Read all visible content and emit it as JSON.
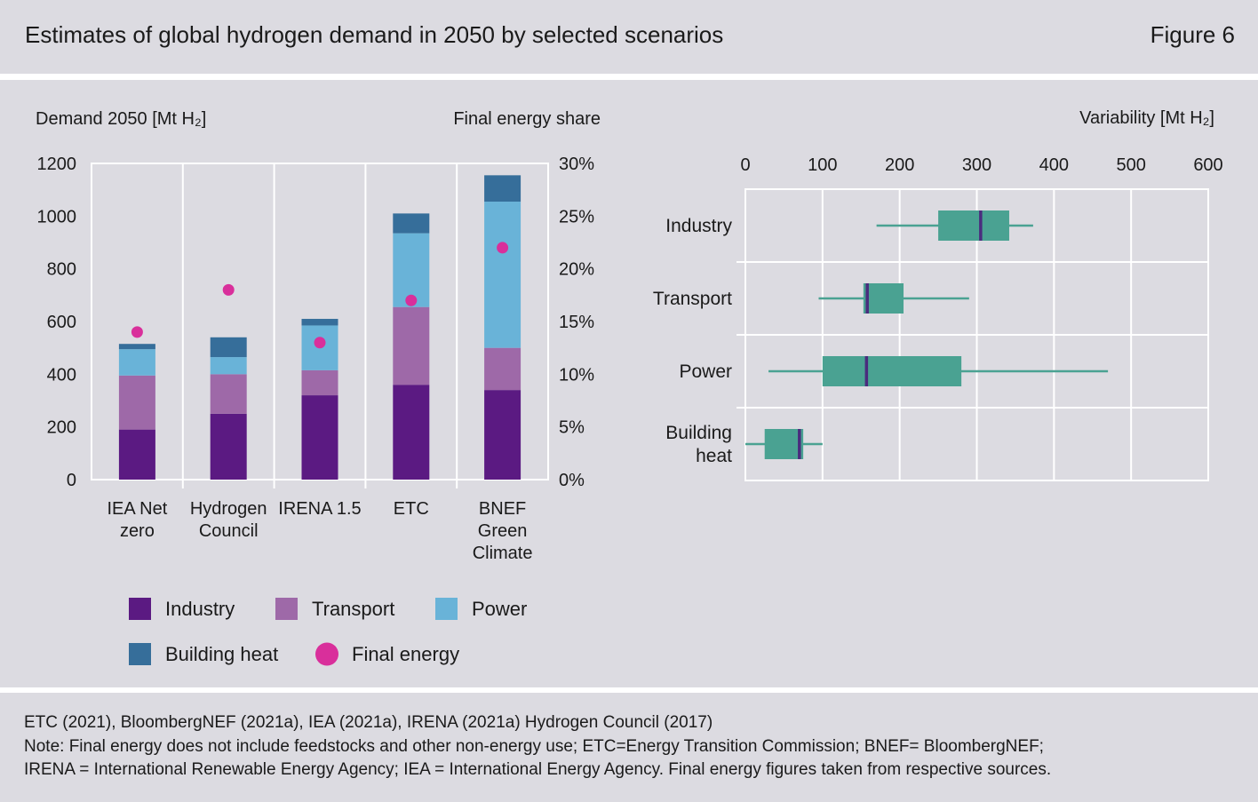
{
  "header": {
    "title": "Estimates of global hydrogen demand in 2050 by selected scenarios",
    "figure_label": "Figure 6"
  },
  "colors": {
    "industry": "#5b1a82",
    "transport": "#9e69a8",
    "power": "#69b3d8",
    "building_heat": "#366e9a",
    "final_energy": "#d92f9b",
    "box": "#4aa292",
    "median": "#4a2c7e",
    "background": "#dcdbe1"
  },
  "chart_data": [
    {
      "type": "bar",
      "stacked": true,
      "ylabel": "Demand 2050 [Mt H₂]",
      "y2label": "Final energy share",
      "ylim": [
        0,
        1200
      ],
      "y2lim": [
        0,
        30
      ],
      "yticks": [
        "0",
        "200",
        "400",
        "600",
        "800",
        "1000",
        "1200"
      ],
      "y2ticks": [
        "0%",
        "5%",
        "10%",
        "15%",
        "20%",
        "25%",
        "30%"
      ],
      "categories": [
        [
          "IEA Net",
          "zero"
        ],
        [
          "Hydrogen",
          "Council"
        ],
        [
          "IRENA 1.5"
        ],
        [
          "ETC"
        ],
        [
          "BNEF",
          "Green",
          "Climate"
        ]
      ],
      "series": [
        {
          "name": "Industry",
          "key": "industry",
          "values": [
            190,
            250,
            320,
            360,
            340
          ]
        },
        {
          "name": "Transport",
          "key": "transport",
          "values": [
            205,
            150,
            95,
            295,
            160
          ]
        },
        {
          "name": "Power",
          "key": "power",
          "values": [
            100,
            65,
            170,
            280,
            555
          ]
        },
        {
          "name": "Building heat",
          "key": "building_heat",
          "values": [
            20,
            75,
            25,
            75,
            100
          ]
        }
      ],
      "final_energy": {
        "name": "Final energy",
        "values": [
          14,
          18,
          13,
          17,
          22
        ],
        "unit": "%"
      },
      "grid": true,
      "legend_position": "bottom"
    },
    {
      "type": "boxplot",
      "orientation": "horizontal",
      "xlabel": "Variability [Mt H₂]",
      "xlim": [
        0,
        600
      ],
      "xticks": [
        "0",
        "100",
        "200",
        "300",
        "400",
        "500",
        "600"
      ],
      "categories": [
        [
          "Industry"
        ],
        [
          "Transport"
        ],
        [
          "Power"
        ],
        [
          "Building",
          "heat"
        ]
      ],
      "boxes": [
        {
          "min": 170,
          "q1": 250,
          "median": 305,
          "q3": 342,
          "max": 373
        },
        {
          "min": 95,
          "q1": 153,
          "median": 158,
          "q3": 205,
          "max": 290
        },
        {
          "min": 30,
          "q1": 100,
          "median": 157,
          "q3": 280,
          "max": 470
        },
        {
          "min": 0,
          "q1": 25,
          "median": 70,
          "q3": 75,
          "max": 100
        }
      ],
      "grid": true
    }
  ],
  "footer": {
    "sources": "ETC (2021), BloombergNEF (2021a), IEA (2021a), IRENA (2021a) Hydrogen Council (2017)",
    "note_line1": "Note: Final energy does not include feedstocks and other non-energy use; ETC=Energy Transition Commission; BNEF= BloombergNEF;",
    "note_line2": "IRENA = International Renewable Energy Agency; IEA = International Energy Agency. Final energy figures taken from respective sources."
  }
}
